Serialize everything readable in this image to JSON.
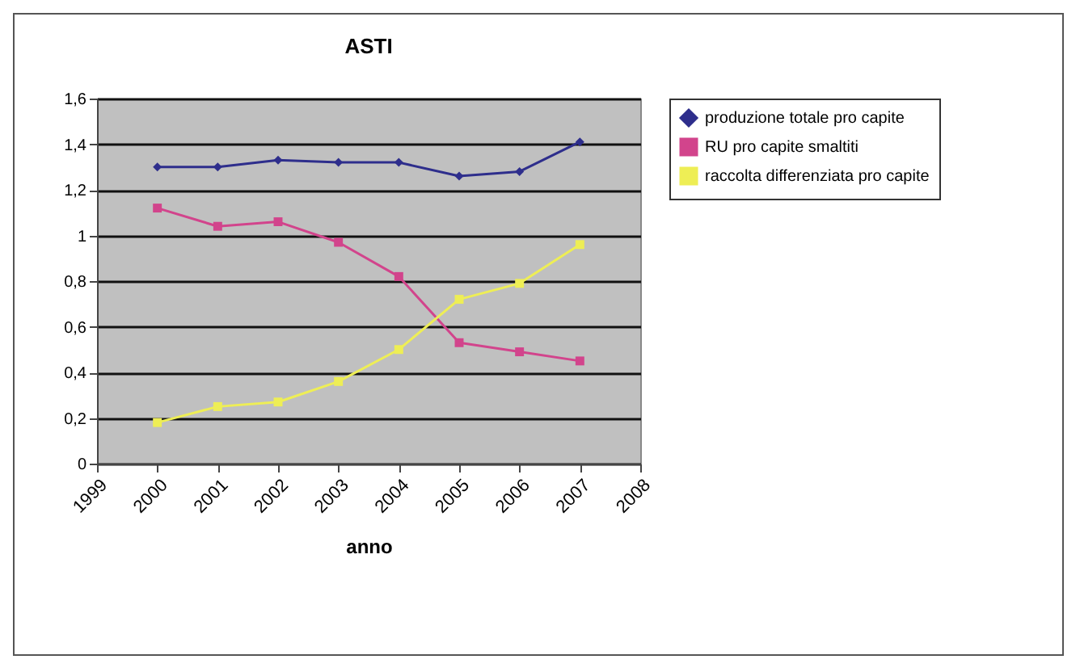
{
  "chart_data": {
    "type": "line",
    "title": "ASTI",
    "xlabel": "anno",
    "x": [
      2000,
      2001,
      2002,
      2003,
      2004,
      2005,
      2006,
      2007
    ],
    "series": [
      {
        "name": "produzione totale pro capite",
        "color": "#2e2e8c",
        "marker": "diamond",
        "values": [
          1.3,
          1.3,
          1.33,
          1.32,
          1.32,
          1.26,
          1.28,
          1.41
        ]
      },
      {
        "name": "RU pro capite smaltiti",
        "color": "#d2448c",
        "marker": "square",
        "values": [
          1.12,
          1.04,
          1.06,
          0.97,
          0.82,
          0.53,
          0.49,
          0.45
        ]
      },
      {
        "name": "raccolta differenziata pro capite",
        "color": "#eeee55",
        "marker": "square",
        "values": [
          0.18,
          0.25,
          0.27,
          0.36,
          0.5,
          0.72,
          0.79,
          0.96
        ]
      }
    ],
    "xlim": [
      1999,
      2008
    ],
    "xticks": [
      1999,
      2000,
      2001,
      2002,
      2003,
      2004,
      2005,
      2006,
      2007,
      2008
    ],
    "ylim": [
      0,
      1.6
    ],
    "yticks": [
      0,
      {
        "value": 0.2,
        "label": "0,2"
      },
      {
        "value": 0.4,
        "label": "0,4"
      },
      {
        "value": 0.6,
        "label": "0,6"
      },
      {
        "value": 0.8,
        "label": "0,8"
      },
      1,
      {
        "value": 1.2,
        "label": "1,2"
      },
      {
        "value": 1.4,
        "label": "1,4"
      },
      {
        "value": 1.6,
        "label": "1,6"
      }
    ],
    "grid": "y",
    "legend": "right",
    "line_style": "solid"
  }
}
